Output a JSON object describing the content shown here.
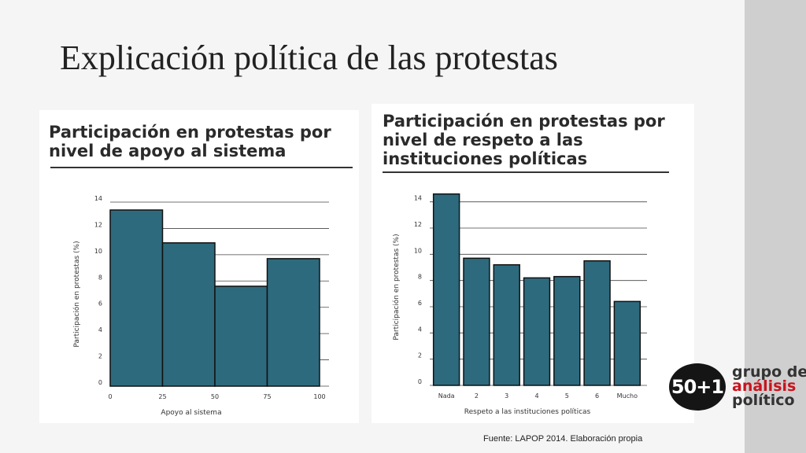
{
  "slide": {
    "title": "Explicación política de las protestas",
    "source": "Fuente: LAPOP 2014. Elaboración propia"
  },
  "logo": {
    "mark": "50+1",
    "line1": "grupo de",
    "line2": "análisis",
    "line3": "político"
  },
  "colors": {
    "bar": "#2e6a7d",
    "bar_border": "#111111",
    "grid": "#444444",
    "panel": "#ffffff"
  },
  "chart_data": [
    {
      "type": "bar",
      "title": "Participación en protestas por nivel de apoyo al sistema",
      "xlabel": "Apoyo al sistema",
      "ylabel": "Participación en protestas (%)",
      "ylim": [
        0,
        14
      ],
      "yticks": [
        0,
        2,
        4,
        6,
        8,
        10,
        12,
        14
      ],
      "xticks": [
        "0",
        "25",
        "50",
        "75",
        "100"
      ],
      "bins": [
        [
          0,
          25
        ],
        [
          25,
          50
        ],
        [
          50,
          75
        ],
        [
          75,
          100
        ]
      ],
      "values": [
        13.4,
        10.9,
        7.6,
        9.7
      ],
      "grid": true,
      "legend": "none"
    },
    {
      "type": "bar",
      "title": "Participación en protestas por nivel de respeto a las instituciones políticas",
      "xlabel": "Respeto a las instituciones políticas",
      "ylabel": "Participación en protestas (%)",
      "ylim": [
        0,
        15
      ],
      "yticks": [
        0,
        2,
        4,
        6,
        8,
        10,
        12,
        14
      ],
      "categories": [
        "Nada",
        "2",
        "3",
        "4",
        "5",
        "6",
        "Mucho"
      ],
      "values": [
        14.6,
        9.7,
        9.2,
        8.2,
        8.3,
        9.5,
        6.4
      ],
      "grid": true,
      "legend": "none"
    }
  ]
}
